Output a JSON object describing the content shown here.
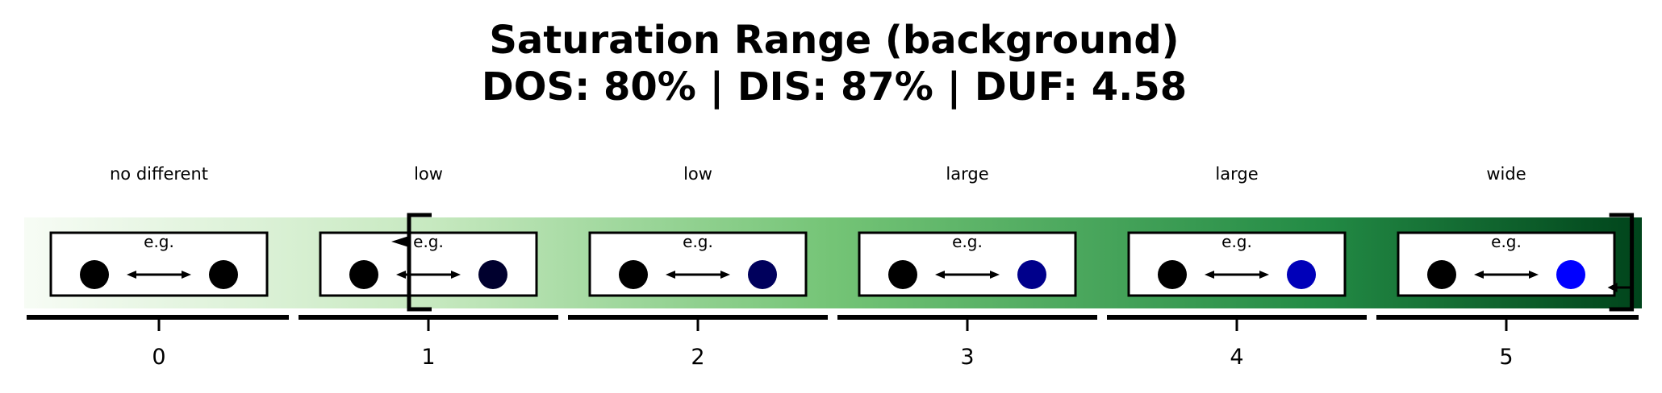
{
  "title": {
    "line1": "Saturation Range (background)",
    "line2": "DOS: 80% | DIS: 87% | DUF: 4.58"
  },
  "chart_data": {
    "type": "scale",
    "colormap": "Greens",
    "levels": [
      {
        "tick": "0",
        "description": "no different",
        "example_label": "e.g.",
        "left_dot_color": "#000000",
        "right_dot_color": "#000000"
      },
      {
        "tick": "1",
        "description": "low",
        "example_label": "e.g.",
        "left_dot_color": "#000000",
        "right_dot_color": "#00002e"
      },
      {
        "tick": "2",
        "description": "low",
        "example_label": "e.g.",
        "left_dot_color": "#000000",
        "right_dot_color": "#00005c"
      },
      {
        "tick": "3",
        "description": "large",
        "example_label": "e.g.",
        "left_dot_color": "#000000",
        "right_dot_color": "#00008b"
      },
      {
        "tick": "4",
        "description": "large",
        "example_label": "e.g.",
        "left_dot_color": "#000000",
        "right_dot_color": "#0000b9"
      },
      {
        "tick": "5",
        "description": "wide",
        "example_label": "e.g.",
        "left_dot_color": "#000000",
        "right_dot_color": "#0000ff"
      }
    ],
    "range_bracket": {
      "min": 1,
      "max": 5.4
    }
  },
  "colors": {
    "gradient_start": "#f7fcf5",
    "gradient_mid1": "#c7e9c0",
    "gradient_mid2": "#74c476",
    "gradient_mid3": "#238b45",
    "gradient_end": "#00441b",
    "axis": "#000000"
  }
}
